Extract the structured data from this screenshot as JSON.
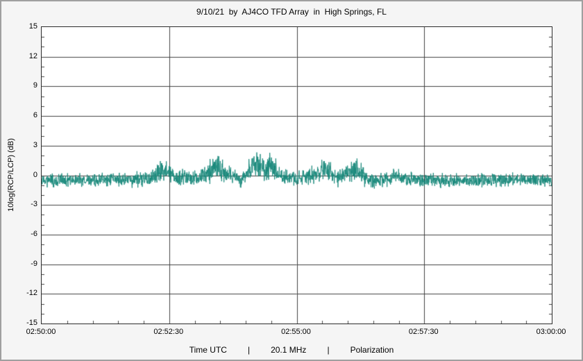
{
  "chart_data": {
    "type": "line",
    "title": "9/10/21  by  AJ4CO TFD Array  in  High Springs, FL",
    "ylabel": "10log(RCP/LCP)  (dB)",
    "xlabel": "Time UTC",
    "footer": {
      "items": [
        "Time UTC",
        "20.1 MHz",
        "Polarization"
      ],
      "separator": "|"
    },
    "x_ticks": [
      "02:50:00",
      "02:52:30",
      "02:55:00",
      "02:57:30",
      "03:00:00"
    ],
    "x_range_seconds": [
      0,
      600
    ],
    "x_minor_step_seconds": 30,
    "ylim": [
      -15,
      15
    ],
    "y_ticks": [
      15,
      12,
      9,
      6,
      3,
      0,
      -3,
      -6,
      -9,
      -12,
      -15
    ],
    "y_minor_step": 1,
    "grid": true,
    "legend": "none",
    "gridline_color": "#404040",
    "plot_background": "#ffffff",
    "series": [
      {
        "name": "10log(RCP/LCP) (dB)",
        "color": "#19897b",
        "samples_per_pixel": 3,
        "baseline_db": -0.5,
        "envelope": [
          [
            0,
            -0.5,
            0.55
          ],
          [
            50,
            -0.5,
            0.6
          ],
          [
            100,
            -0.45,
            0.6
          ],
          [
            130,
            -0.3,
            0.8
          ],
          [
            143,
            0.7,
            1.1
          ],
          [
            158,
            -0.2,
            0.8
          ],
          [
            185,
            -0.3,
            0.7
          ],
          [
            200,
            0.6,
            1.2
          ],
          [
            207,
            1.1,
            1.3
          ],
          [
            218,
            -0.1,
            0.8
          ],
          [
            235,
            -0.3,
            0.7
          ],
          [
            248,
            0.8,
            1.2
          ],
          [
            256,
            1.1,
            1.4
          ],
          [
            263,
            0.5,
            1.0
          ],
          [
            270,
            1.0,
            1.3
          ],
          [
            282,
            -0.2,
            0.8
          ],
          [
            300,
            -0.4,
            0.7
          ],
          [
            325,
            0.2,
            0.9
          ],
          [
            333,
            0.9,
            1.2
          ],
          [
            345,
            -0.2,
            0.8
          ],
          [
            365,
            0.3,
            1.0
          ],
          [
            371,
            0.7,
            1.1
          ],
          [
            382,
            -0.3,
            0.8
          ],
          [
            405,
            -0.5,
            0.65
          ],
          [
            420,
            0.0,
            0.9
          ],
          [
            430,
            -0.4,
            0.7
          ],
          [
            460,
            -0.5,
            0.65
          ],
          [
            500,
            -0.55,
            0.6
          ],
          [
            540,
            -0.5,
            0.6
          ],
          [
            570,
            -0.45,
            0.6
          ],
          [
            600,
            -0.5,
            0.55
          ]
        ]
      }
    ]
  }
}
